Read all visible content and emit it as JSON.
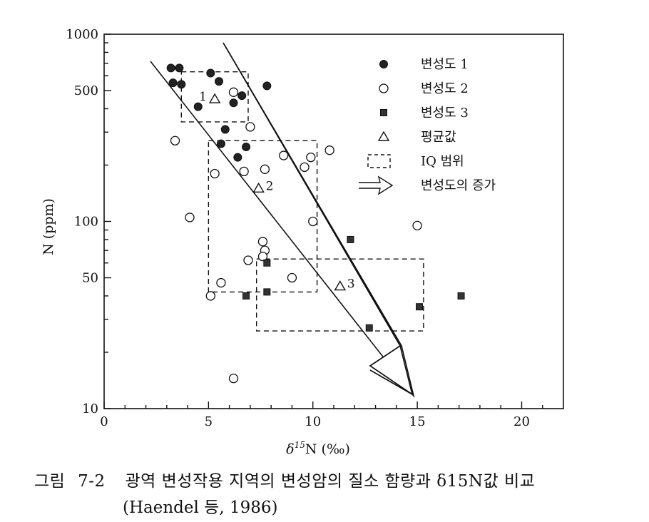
{
  "chart_data": {
    "type": "scatter",
    "xlabel": "δ15N (‰)",
    "ylabel": "N (ppm)",
    "xlim": [
      0,
      22
    ],
    "ylim": [
      10,
      1000
    ],
    "y_scale": "log",
    "x_ticks": [
      "0",
      "5",
      "10",
      "15",
      "20"
    ],
    "y_ticks": [
      "10",
      "50",
      "100",
      "500",
      "1000"
    ],
    "legend_position": "top-right",
    "series": [
      {
        "name": "변성도 1",
        "marker": "filled-circle",
        "points": [
          [
            3.2,
            660
          ],
          [
            3.6,
            660
          ],
          [
            3.3,
            550
          ],
          [
            3.7,
            540
          ],
          [
            4.5,
            410
          ],
          [
            5.1,
            620
          ],
          [
            5.5,
            560
          ],
          [
            6.2,
            430
          ],
          [
            6.6,
            470
          ],
          [
            7.8,
            530
          ],
          [
            5.8,
            310
          ],
          [
            5.6,
            260
          ],
          [
            6.8,
            250
          ],
          [
            6.4,
            220
          ]
        ]
      },
      {
        "name": "변성도 2",
        "marker": "open-circle",
        "points": [
          [
            6.2,
            490
          ],
          [
            7.0,
            320
          ],
          [
            3.4,
            270
          ],
          [
            5.3,
            180
          ],
          [
            6.7,
            185
          ],
          [
            7.7,
            190
          ],
          [
            8.6,
            225
          ],
          [
            9.6,
            195
          ],
          [
            9.9,
            220
          ],
          [
            10.8,
            240
          ],
          [
            7.6,
            78
          ],
          [
            7.7,
            70
          ],
          [
            6.9,
            62
          ],
          [
            7.6,
            65
          ],
          [
            9.0,
            50
          ],
          [
            5.6,
            47
          ],
          [
            5.1,
            40
          ],
          [
            4.1,
            105
          ],
          [
            10.0,
            100
          ],
          [
            15.0,
            95
          ],
          [
            6.2,
            14.5
          ]
        ]
      },
      {
        "name": "변성도 3",
        "marker": "filled-square",
        "points": [
          [
            11.8,
            80
          ],
          [
            7.8,
            60
          ],
          [
            7.8,
            42
          ],
          [
            6.8,
            40
          ],
          [
            15.1,
            35
          ],
          [
            17.1,
            40
          ],
          [
            12.7,
            27
          ]
        ]
      },
      {
        "name": "평균값",
        "marker": "open-triangle",
        "points": [
          [
            5.3,
            450
          ],
          [
            7.4,
            150
          ],
          [
            11.3,
            45
          ]
        ]
      }
    ],
    "mean_labels": [
      "1",
      "2",
      "3"
    ],
    "iq_ranges": [
      {
        "label": "1",
        "x": [
          3.7,
          6.9
        ],
        "y": [
          340,
          630
        ]
      },
      {
        "label": "2",
        "x": [
          5.0,
          10.2
        ],
        "y": [
          42,
          270
        ]
      },
      {
        "label": "3",
        "x": [
          7.3,
          15.3
        ],
        "y": [
          26,
          63
        ]
      }
    ],
    "trend_arrow": {
      "label": "변성도의 증가"
    },
    "legend": [
      {
        "symbol": "filled-circle",
        "label": "변성도 1"
      },
      {
        "symbol": "open-circle",
        "label": "변성도 2"
      },
      {
        "symbol": "filled-square",
        "label": "변성도 3"
      },
      {
        "symbol": "open-triangle",
        "label": "평균값"
      },
      {
        "symbol": "dashed-box",
        "label": "IQ 범위"
      },
      {
        "symbol": "hollow-arrow",
        "label": "변성도의 증가"
      }
    ]
  },
  "caption": {
    "figure_label": "그림",
    "figure_number": "7-2",
    "text": "광역 변성작용 지역의 변성암의 질소 함량과 δ15N값 비교",
    "source": "(Haendel 등, 1986)"
  }
}
